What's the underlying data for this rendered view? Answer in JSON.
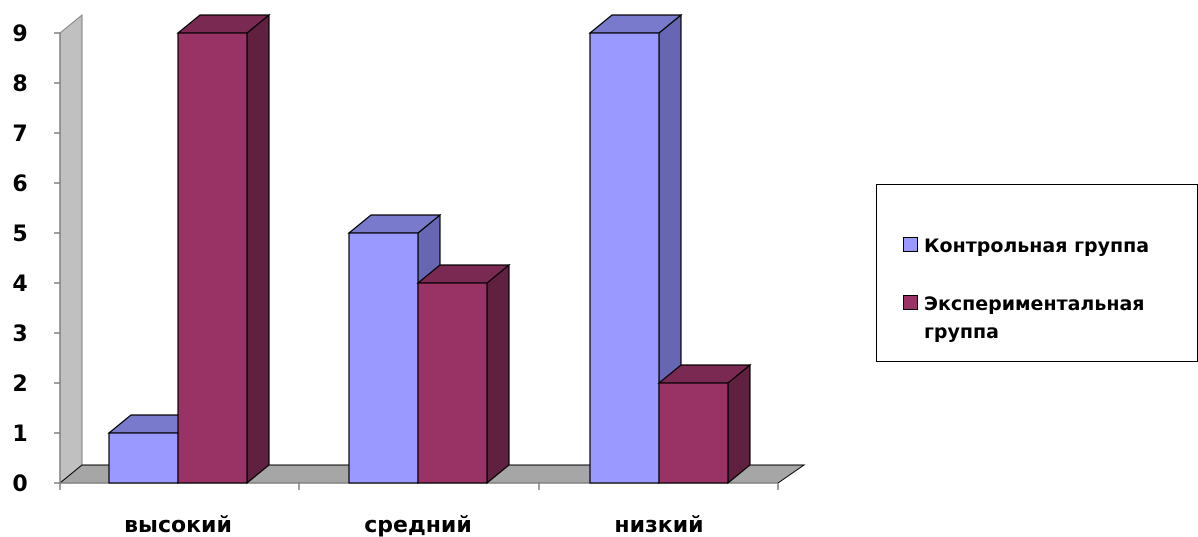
{
  "chart_data": {
    "type": "bar",
    "categories": [
      "высокий",
      "средний",
      "низкий"
    ],
    "series": [
      {
        "name": "Контрольная группа",
        "values": [
          1,
          5,
          9
        ],
        "color": "#9999ff",
        "side_color": "#6666b3",
        "top_color": "#7a7acc"
      },
      {
        "name": "Экспериментальная группа",
        "values": [
          9,
          4,
          2
        ],
        "color": "#993366",
        "side_color": "#602040",
        "top_color": "#7a2952"
      }
    ],
    "ylim": [
      0,
      9
    ],
    "yticks": [
      "0",
      "1",
      "2",
      "3",
      "4",
      "5",
      "6",
      "7",
      "8",
      "9"
    ],
    "title": "",
    "xlabel": "",
    "ylabel": "",
    "legend_position": "right",
    "style": "3d-clustered-column",
    "grid": false
  }
}
